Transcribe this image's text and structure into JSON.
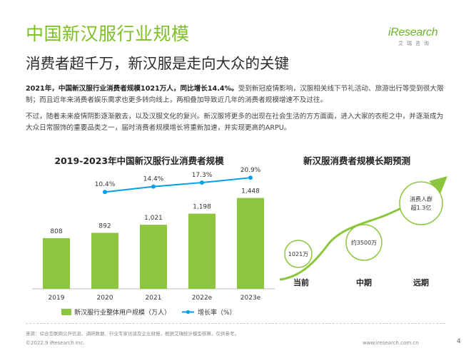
{
  "header": {
    "title": "中国新汉服行业规模",
    "subtitle": "消费者超千万，新汉服是走向大众的关键"
  },
  "logo": {
    "word": "iResearch",
    "sub": "艾瑞咨询"
  },
  "paragraphs": {
    "p1_bold": "2021年，中国新汉服行业消费者规模1021万人，同比增长14.4%。",
    "p1_rest": "受到新冠疫情影响，汉服相关线下节礼活动、旅游出行等受到很大限制；而且近年来消费者娱乐需求也更多转向线上，两相叠加导致近几年的消费者规模增速不及过往。",
    "p2": "不过，随着未来疫情阴影逐渐散去，以及汉服文化的复兴。新汉服将更多的出现在社会生活的方方面面，进入大家的衣柜之中，并逐渐成为大众日常服饰的重要品类之一，届时消费者规模增长将重新加速，并实现更高的ARPU。"
  },
  "chart_data": [
    {
      "type": "bar",
      "title": "2019-2023年中国新汉服行业消费者规模",
      "categories": [
        "2019",
        "2020",
        "2021",
        "2022e",
        "2023e"
      ],
      "series": [
        {
          "name": "新汉服行业整体用户规模（万人）",
          "type": "bar",
          "color": "#8cc63f",
          "values": [
            808,
            892,
            1021,
            1198,
            1448
          ],
          "labels": [
            "808",
            "892",
            "1,021",
            "1,198",
            "1,448"
          ]
        },
        {
          "name": "增长率（%）",
          "type": "line",
          "color": "#00a0e9",
          "values": [
            null,
            10.4,
            14.4,
            17.3,
            20.9
          ],
          "labels": [
            "",
            "10.4%",
            "14.4%",
            "17.3%",
            "20.9%"
          ]
        }
      ],
      "ylim": [
        0,
        1600
      ],
      "legend_position": "bottom"
    },
    {
      "type": "diagram",
      "title": "新汉服消费者规模长期预测",
      "stages": [
        {
          "period": "当前",
          "bubble_text": [
            "1021万"
          ]
        },
        {
          "period": "中期",
          "bubble_text": [
            "约3500万"
          ]
        },
        {
          "period": "远期",
          "bubble_text": [
            "消费人群",
            "超1.3亿"
          ]
        }
      ]
    }
  ],
  "footer": {
    "source": "来源：综合互联网公开信息、调研数据、行业专家访谈及企业财报，根据艾瑞统计模型核算，仅供参考。",
    "copyright": "©2022.9 iResearch Inc.",
    "url": "www.iresearch.com.cn",
    "page": "4"
  },
  "colors": {
    "accent_green": "#7cbf26",
    "bar_green": "#8cc63f",
    "line_blue": "#00a0e9"
  }
}
